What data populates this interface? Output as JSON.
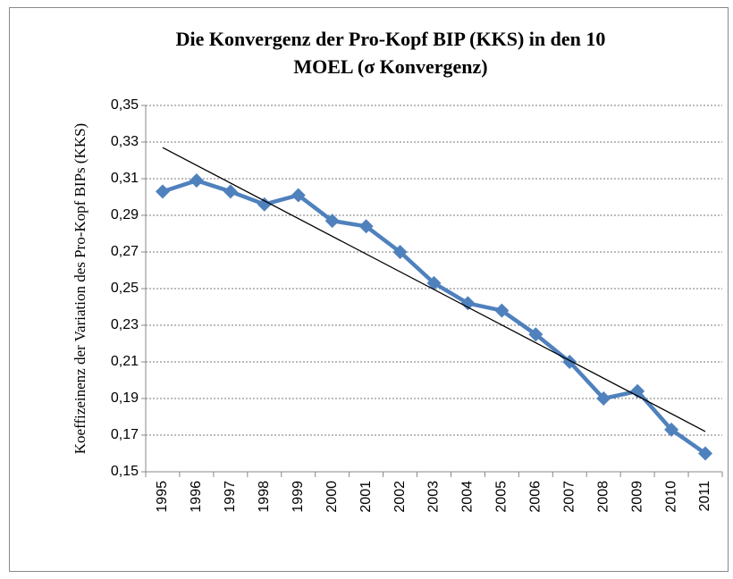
{
  "chart_data": {
    "type": "line",
    "title": "Die Konvergenz der Pro-Kopf BIP (KKS) in den 10 MOEL (σ Konvergenz)",
    "y_label": "Koeffizeinenz der Variation des Pro-Kopf BIPs (KKS)",
    "categories": [
      "1995",
      "1996",
      "1997",
      "1998",
      "1999",
      "2000",
      "2001",
      "2002",
      "2003",
      "2004",
      "2005",
      "2006",
      "2007",
      "2008",
      "2009",
      "2010",
      "2011"
    ],
    "values": [
      0.303,
      0.309,
      0.303,
      0.296,
      0.301,
      0.287,
      0.284,
      0.27,
      0.253,
      0.242,
      0.238,
      0.225,
      0.21,
      0.19,
      0.194,
      0.173,
      0.16
    ],
    "color": "#4f81bd",
    "trendline": {
      "start": 0.327,
      "end": 0.172,
      "color": "#000000"
    },
    "ylim": [
      0.15,
      0.35
    ],
    "yticks": [
      {
        "value": 0.15,
        "label": "0,15"
      },
      {
        "value": 0.17,
        "label": "0,17"
      },
      {
        "value": 0.19,
        "label": "0,19"
      },
      {
        "value": 0.21,
        "label": "0,21"
      },
      {
        "value": 0.23,
        "label": "0,23"
      },
      {
        "value": 0.25,
        "label": "0,25"
      },
      {
        "value": 0.27,
        "label": "0,27"
      },
      {
        "value": 0.29,
        "label": "0,29"
      },
      {
        "value": 0.31,
        "label": "0,31"
      },
      {
        "value": 0.33,
        "label": "0,33"
      },
      {
        "value": 0.35,
        "label": "0,35"
      }
    ],
    "grid": true
  }
}
